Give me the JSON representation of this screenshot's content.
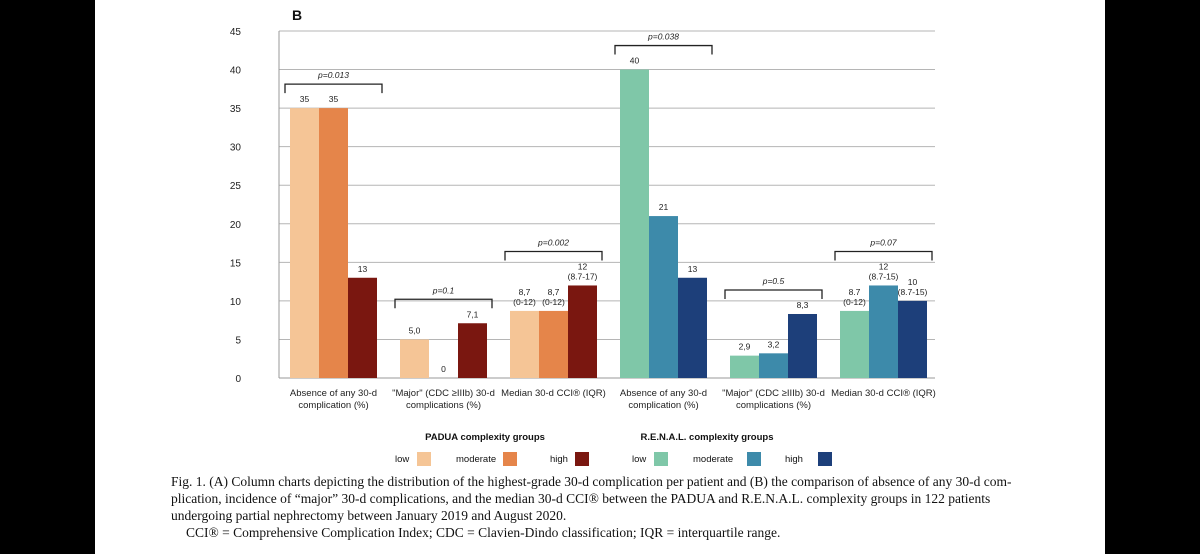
{
  "panel_label": "B",
  "chart_data": {
    "type": "bar",
    "ylim": [
      0,
      45
    ],
    "yticks": [
      0,
      5,
      10,
      15,
      20,
      25,
      30,
      35,
      40,
      45
    ],
    "grid": "horizontal",
    "legend_position": "bottom",
    "colors": {
      "padua": [
        "#f5c596",
        "#e5854a",
        "#7a1710"
      ],
      "renal": [
        "#7fc7a8",
        "#3d8aaa",
        "#1d3f7a"
      ]
    },
    "groups": [
      {
        "label_lines": [
          "Absence of any 30-d",
          "complication (%)"
        ],
        "scheme": "padua",
        "values": [
          35,
          35,
          13
        ],
        "value_labels": [
          [
            "35"
          ],
          [
            "35"
          ],
          [
            "13"
          ]
        ],
        "p_text": "p=0.013"
      },
      {
        "label_lines": [
          "\"Major\" (CDC ≥IIIb) 30-d",
          "complications (%)"
        ],
        "scheme": "padua",
        "values": [
          5.0,
          0,
          7.1
        ],
        "value_labels": [
          [
            "5,0"
          ],
          [
            "0"
          ],
          [
            "7,1"
          ]
        ],
        "p_text": "p=0.1"
      },
      {
        "label_lines": [
          "Median 30-d CCI® (IQR)"
        ],
        "scheme": "padua",
        "values": [
          8.7,
          8.7,
          12
        ],
        "value_labels": [
          [
            "8,7",
            "(0-12)"
          ],
          [
            "8,7",
            "(0-12)"
          ],
          [
            "12",
            "(8.7-17)"
          ]
        ],
        "p_text": "p=0.002"
      },
      {
        "label_lines": [
          "Absence of any 30-d",
          "complication (%)"
        ],
        "scheme": "renal",
        "values": [
          40,
          21,
          13
        ],
        "value_labels": [
          [
            "40"
          ],
          [
            "21"
          ],
          [
            "13"
          ]
        ],
        "p_text": "p=0.038"
      },
      {
        "label_lines": [
          "\"Major\" (CDC ≥IIIb) 30-d",
          "complications (%)"
        ],
        "scheme": "renal",
        "values": [
          2.9,
          3.2,
          8.3
        ],
        "value_labels": [
          [
            "2,9"
          ],
          [
            "3,2"
          ],
          [
            "8,3"
          ]
        ],
        "p_text": "p=0.5"
      },
      {
        "label_lines": [
          "Median 30-d CCI® (IQR)"
        ],
        "scheme": "renal",
        "values": [
          8.7,
          12,
          10
        ],
        "value_labels": [
          [
            "8.7",
            "(0-12)"
          ],
          [
            "12",
            "(8.7-15)"
          ],
          [
            "10",
            "(8.7-15)"
          ]
        ],
        "p_text": "p=0.07"
      }
    ],
    "legends": [
      {
        "title": "PADUA complexity groups",
        "scheme": "padua",
        "entries": [
          "low",
          "moderate",
          "high"
        ]
      },
      {
        "title": "R.E.N.A.L. complexity groups",
        "scheme": "renal",
        "entries": [
          "low",
          "moderate",
          "high"
        ]
      }
    ]
  },
  "caption": {
    "line1": "Fig. 1. (A) Column charts depicting the distribution of the highest-grade 30-d complication per patient and (B) the comparison of absence of any 30-d com-",
    "line2": "plication, incidence of “major” 30-d complications, and the median 30-d CCI® between the PADUA and R.E.N.A.L. complexity groups in 122 patients",
    "line3": "undergoing partial nephrectomy between January 2019 and August 2020.",
    "line4": "CCI® = Comprehensive Complication Index; CDC = Clavien-Dindo classification; IQR = interquartile range."
  }
}
